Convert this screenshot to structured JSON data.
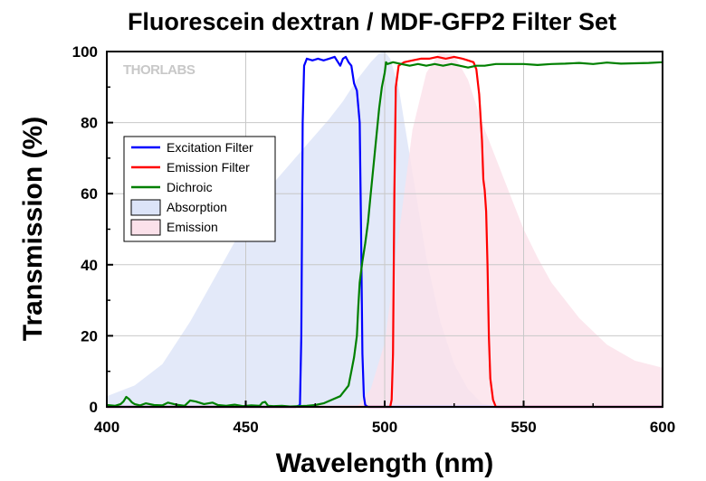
{
  "chart_data": {
    "type": "line",
    "title": "Fluorescein dextran / MDF-GFP2 Filter Set",
    "xlabel": "Wavelength (nm)",
    "ylabel": "Transmission (%)",
    "xlim": [
      400,
      600
    ],
    "ylim": [
      0,
      100
    ],
    "xticks": [
      "400",
      "450",
      "500",
      "550",
      "600"
    ],
    "yticks": [
      "0",
      "20",
      "40",
      "60",
      "80",
      "100"
    ],
    "grid": true,
    "legend_position": "upper-left",
    "watermark": "THORLABS",
    "series": [
      {
        "name": "Excitation Filter",
        "kind": "line",
        "color": "#0000ff",
        "x": [
          400,
          468,
          469.5,
          470,
          470.5,
          471,
          472,
          474,
          476,
          478,
          480,
          482,
          484,
          485,
          486,
          487,
          488,
          489,
          490,
          491,
          491.5,
          492,
          492.5,
          493,
          494,
          600
        ],
        "y": [
          0,
          0,
          0.5,
          20,
          80,
          96,
          98,
          97.5,
          98,
          97.5,
          98,
          98.5,
          96,
          98,
          98.5,
          97,
          96,
          91,
          89,
          80,
          50,
          15,
          3,
          0.5,
          0,
          0
        ]
      },
      {
        "name": "Emission Filter",
        "kind": "line",
        "color": "#ff0000",
        "x": [
          400,
          502,
          502.5,
          503,
          503.5,
          504,
          505,
          507,
          510,
          513,
          516,
          519,
          522,
          525,
          528,
          530,
          532,
          533,
          534,
          535,
          535.5,
          536,
          536.5,
          537,
          537.5,
          538,
          539,
          540,
          600
        ],
        "y": [
          0,
          0,
          2,
          15,
          60,
          90,
          96,
          97,
          97.5,
          98,
          98,
          98.5,
          98,
          98.5,
          98,
          97.5,
          97,
          95,
          88,
          75,
          64,
          61,
          55,
          40,
          20,
          8,
          2,
          0,
          0
        ]
      },
      {
        "name": "Dichroic",
        "kind": "line",
        "color": "#008000",
        "x": [
          400,
          403,
          405,
          406,
          407,
          408,
          409,
          410,
          412,
          414,
          417,
          420,
          422,
          425,
          428,
          430,
          432,
          435,
          438,
          440,
          443,
          446,
          449,
          452,
          455,
          456,
          457,
          458,
          460,
          463,
          466,
          469,
          472,
          475,
          478,
          481,
          484,
          487,
          488,
          489,
          490,
          490.5,
          491,
          491.5,
          492,
          493,
          494,
          495,
          496,
          497,
          498,
          499,
          500,
          500.5,
          501,
          503,
          506,
          509,
          512,
          515,
          518,
          521,
          524,
          527,
          530,
          533,
          536,
          540,
          545,
          550,
          555,
          560,
          565,
          570,
          575,
          580,
          585,
          590,
          595,
          600
        ],
        "y": [
          0.5,
          0.3,
          0.8,
          1.5,
          2.8,
          2.2,
          1.3,
          0.8,
          0.4,
          1.0,
          0.5,
          0.4,
          1.2,
          0.6,
          0.3,
          1.8,
          1.5,
          0.8,
          1.2,
          0.5,
          0.3,
          0.6,
          0.2,
          0.4,
          0.3,
          1.2,
          1.4,
          0.3,
          0.2,
          0.3,
          0.1,
          0.2,
          0.3,
          0.5,
          1.0,
          2.0,
          3.0,
          6.0,
          10,
          14,
          20,
          28,
          35,
          38,
          41,
          46,
          52,
          60,
          68,
          76,
          84,
          90,
          94,
          97,
          96.5,
          97,
          96.5,
          96,
          96.5,
          96,
          96.5,
          96,
          96.5,
          96,
          95.5,
          96,
          96,
          96.5,
          96.5,
          96.5,
          96.2,
          96.5,
          96.6,
          96.8,
          96.5,
          96.9,
          96.6,
          96.7,
          96.8,
          97
        ]
      },
      {
        "name": "Absorption",
        "kind": "area",
        "color": "#dce4f8",
        "x": [
          400,
          410,
          420,
          430,
          440,
          450,
          460,
          470,
          480,
          485,
          490,
          495,
          498,
          500,
          502,
          505,
          510,
          515,
          520,
          525,
          530,
          535,
          540,
          600
        ],
        "y": [
          3,
          6,
          12,
          24,
          38,
          52,
          63,
          72,
          81,
          86,
          92,
          97,
          99.5,
          100,
          98,
          90,
          66,
          42,
          24,
          12,
          5,
          1,
          0,
          0
        ]
      },
      {
        "name": "Emission",
        "kind": "area",
        "color": "#fbe1ea",
        "x": [
          400,
          490,
          495,
          500,
          505,
          510,
          515,
          520,
          525,
          530,
          535,
          540,
          545,
          550,
          555,
          560,
          570,
          580,
          590,
          600
        ],
        "y": [
          0,
          0,
          5,
          18,
          48,
          78,
          94,
          100,
          99,
          92,
          80,
          70,
          60,
          50,
          42,
          35,
          25,
          17.5,
          13,
          11
        ]
      }
    ]
  }
}
